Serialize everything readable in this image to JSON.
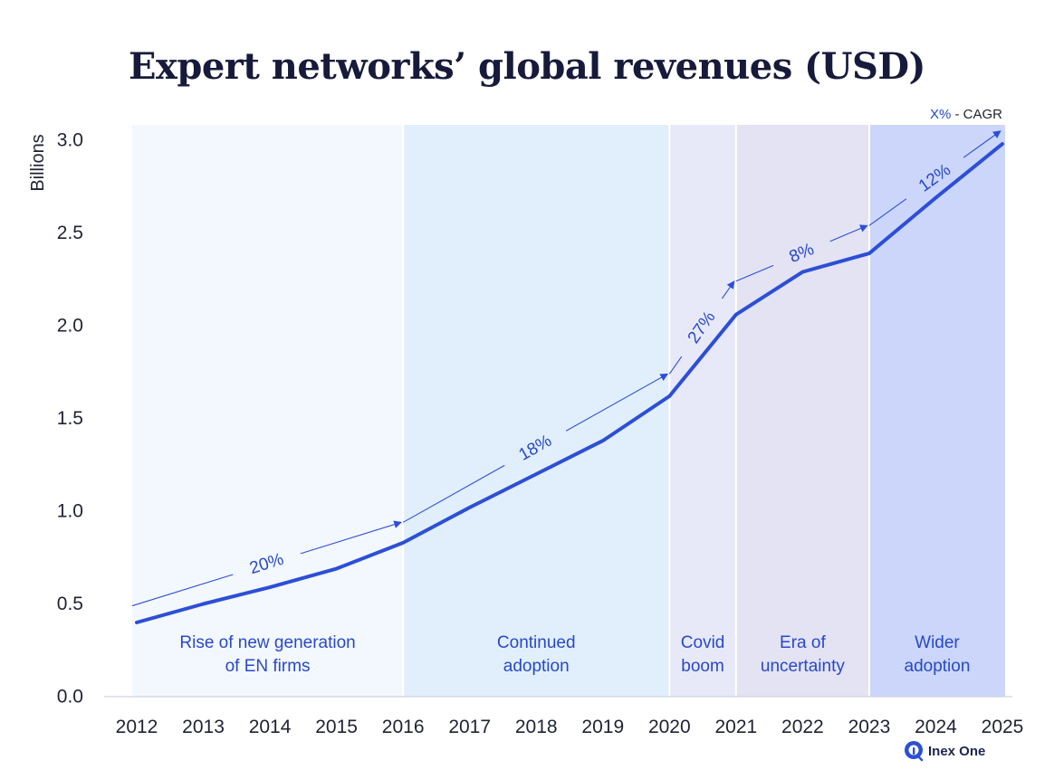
{
  "chart_data": {
    "type": "line",
    "title": "Expert networks’ global revenues (USD)",
    "ylabel": "Billions",
    "xlabel": "",
    "ylim": [
      0,
      3.0
    ],
    "yticks": [
      "0.0",
      "0.5",
      "1.0",
      "1.5",
      "2.0",
      "2.5",
      "3.0"
    ],
    "ytick_values": [
      0,
      0.5,
      1.0,
      1.5,
      2.0,
      2.5,
      3.0
    ],
    "categories": [
      "2012",
      "2013",
      "2014",
      "2015",
      "2016",
      "2017",
      "2018",
      "2019",
      "2020",
      "2021",
      "2022",
      "2023",
      "2024",
      "2025"
    ],
    "series": [
      {
        "name": "Revenue",
        "color": "#2d4fd6",
        "values": [
          0.4,
          0.5,
          0.59,
          0.69,
          0.83,
          1.02,
          1.2,
          1.38,
          1.62,
          2.06,
          2.29,
          2.39,
          2.69,
          2.98
        ]
      }
    ],
    "eras": [
      {
        "label_line1": "Rise of new generation",
        "label_line2": "of EN firms",
        "start_year": 2012,
        "end_year": 2016,
        "color": "#f3f8fe"
      },
      {
        "label_line1": "Continued",
        "label_line2": "adoption",
        "start_year": 2016,
        "end_year": 2020,
        "color": "#e1effc"
      },
      {
        "label_line1": "Covid",
        "label_line2": "boom",
        "start_year": 2020,
        "end_year": 2021,
        "color": "#e8e9f8"
      },
      {
        "label_line1": "Era of",
        "label_line2": "uncertainty",
        "start_year": 2021,
        "end_year": 2023,
        "color": "#e3e3f4"
      },
      {
        "label_line1": "Wider",
        "label_line2": "adoption",
        "start_year": 2023,
        "end_year": 2025,
        "color": "#cbd6fa"
      }
    ],
    "cagr_annotations": [
      {
        "label": "20%",
        "from_year": 2012,
        "from_value": 0.49,
        "to_year": 2016,
        "to_value": 0.94
      },
      {
        "label": "18%",
        "from_year": 2016,
        "from_value": 0.94,
        "to_year": 2020,
        "to_value": 1.74
      },
      {
        "label": "27%",
        "from_year": 2020,
        "from_value": 1.74,
        "to_year": 2021,
        "to_value": 2.24
      },
      {
        "label": "8%",
        "from_year": 2021,
        "from_value": 2.24,
        "to_year": 2023,
        "to_value": 2.54
      },
      {
        "label": "12%",
        "from_year": 2023,
        "from_value": 2.54,
        "to_year": 2025,
        "to_value": 3.05
      }
    ],
    "legend": {
      "key": "X%",
      "text": " - CAGR",
      "position": "top-right"
    }
  },
  "branding": {
    "name": "Inex One"
  }
}
